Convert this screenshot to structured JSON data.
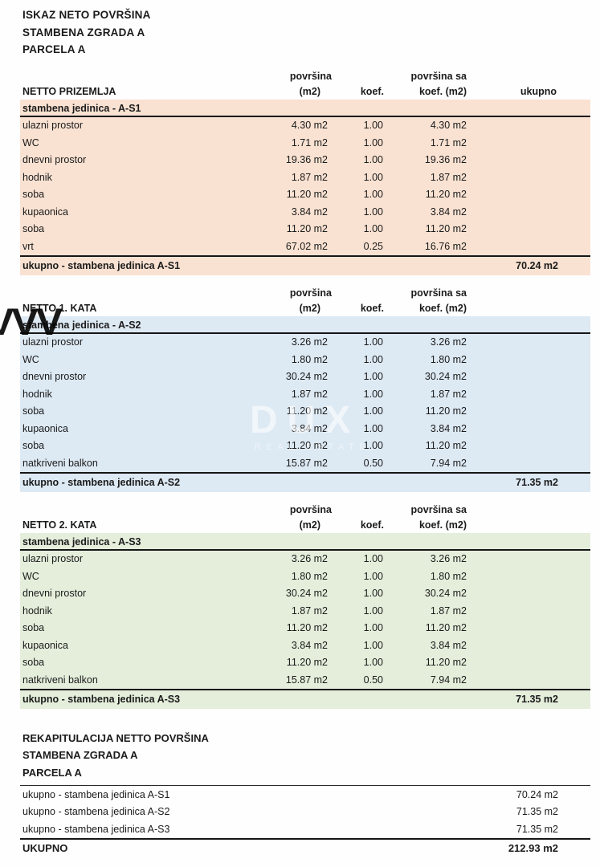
{
  "page": {
    "title_lines": [
      "ISKAZ NETO POVRŠINA",
      "STAMBENA ZGRADA A",
      "PARCELA A"
    ]
  },
  "columns": {
    "c1_top": "površina",
    "c1_bot": "(m2)",
    "c2": "koef.",
    "c3_top": "površina sa",
    "c3_bot": "koef. (m2)"
  },
  "sections": [
    {
      "floor_label": "NETTO PRIZEMLJA",
      "unit_header": "stambena jedinica - A-S1",
      "ukupno_label": "ukupno",
      "color": "#f9e2d2",
      "rows": [
        {
          "name": "ulazni prostor",
          "area": "4.30 m2",
          "koef": "1.00",
          "area_k": "4.30 m2"
        },
        {
          "name": "WC",
          "area": "1.71 m2",
          "koef": "1.00",
          "area_k": "1.71 m2"
        },
        {
          "name": "dnevni prostor",
          "area": "19.36 m2",
          "koef": "1.00",
          "area_k": "19.36 m2"
        },
        {
          "name": "hodnik",
          "area": "1.87 m2",
          "koef": "1.00",
          "area_k": "1.87 m2"
        },
        {
          "name": "soba",
          "area": "11.20 m2",
          "koef": "1.00",
          "area_k": "11.20 m2"
        },
        {
          "name": "kupaonica",
          "area": "3.84 m2",
          "koef": "1.00",
          "area_k": "3.84 m2"
        },
        {
          "name": "soba",
          "area": "11.20 m2",
          "koef": "1.00",
          "area_k": "11.20 m2"
        },
        {
          "name": "vrt",
          "area": "67.02 m2",
          "koef": "0.25",
          "area_k": "16.76 m2"
        }
      ],
      "total_label": "ukupno - stambena jedinica A-S1",
      "total_value": "70.24 m2"
    },
    {
      "floor_label": "NETTO 1. KATA",
      "unit_header": "stambena jedinica - A-S2",
      "ukupno_label": "",
      "color": "#dde9f3",
      "rows": [
        {
          "name": "ulazni prostor",
          "area": "3.26 m2",
          "koef": "1.00",
          "area_k": "3.26 m2"
        },
        {
          "name": "WC",
          "area": "1.80 m2",
          "koef": "1.00",
          "area_k": "1.80 m2"
        },
        {
          "name": "dnevni prostor",
          "area": "30.24 m2",
          "koef": "1.00",
          "area_k": "30.24 m2"
        },
        {
          "name": "hodnik",
          "area": "1.87 m2",
          "koef": "1.00",
          "area_k": "1.87 m2"
        },
        {
          "name": "soba",
          "area": "11.20 m2",
          "koef": "1.00",
          "area_k": "11.20 m2"
        },
        {
          "name": "kupaonica",
          "area": "3.84 m2",
          "koef": "1.00",
          "area_k": "3.84 m2"
        },
        {
          "name": "soba",
          "area": "11.20 m2",
          "koef": "1.00",
          "area_k": "11.20 m2"
        },
        {
          "name": "natkriveni balkon",
          "area": "15.87 m2",
          "koef": "0.50",
          "area_k": "7.94 m2"
        }
      ],
      "total_label": "ukupno - stambena jedinica A-S2",
      "total_value": "71.35 m2"
    },
    {
      "floor_label": "NETTO 2. KATA",
      "unit_header": "stambena jedinica - A-S3",
      "ukupno_label": "",
      "color": "#e4eedb",
      "rows": [
        {
          "name": "ulazni prostor",
          "area": "3.26 m2",
          "koef": "1.00",
          "area_k": "3.26 m2"
        },
        {
          "name": "WC",
          "area": "1.80 m2",
          "koef": "1.00",
          "area_k": "1.80 m2"
        },
        {
          "name": "dnevni prostor",
          "area": "30.24 m2",
          "koef": "1.00",
          "area_k": "30.24 m2"
        },
        {
          "name": "hodnik",
          "area": "1.87 m2",
          "koef": "1.00",
          "area_k": "1.87 m2"
        },
        {
          "name": "soba",
          "area": "11.20 m2",
          "koef": "1.00",
          "area_k": "11.20 m2"
        },
        {
          "name": "kupaonica",
          "area": "3.84 m2",
          "koef": "1.00",
          "area_k": "3.84 m2"
        },
        {
          "name": "soba",
          "area": "11.20 m2",
          "koef": "1.00",
          "area_k": "11.20 m2"
        },
        {
          "name": "natkriveni balkon",
          "area": "15.87 m2",
          "koef": "0.50",
          "area_k": "7.94 m2"
        }
      ],
      "total_label": "ukupno - stambena jedinica A-S3",
      "total_value": "71.35 m2"
    }
  ],
  "recap": {
    "title_lines": [
      "REKAPITULACIJA NETTO POVRŠINA",
      "STAMBENA ZGRADA A",
      "PARCELA A"
    ],
    "rows": [
      {
        "label": "ukupno - stambena jedinica A-S1",
        "value": "70.24 m2"
      },
      {
        "label": "ukupno - stambena jedinica A-S2",
        "value": "71.35 m2"
      },
      {
        "label": "ukupno - stambena jedinica A-S3",
        "value": "71.35 m2"
      }
    ],
    "total_label": "UKUPNO",
    "total_value": "212.93 m2"
  },
  "watermarks": {
    "zigzag": "VVV",
    "brand": "DUX",
    "brand_sub": "REAL ESTATE"
  }
}
